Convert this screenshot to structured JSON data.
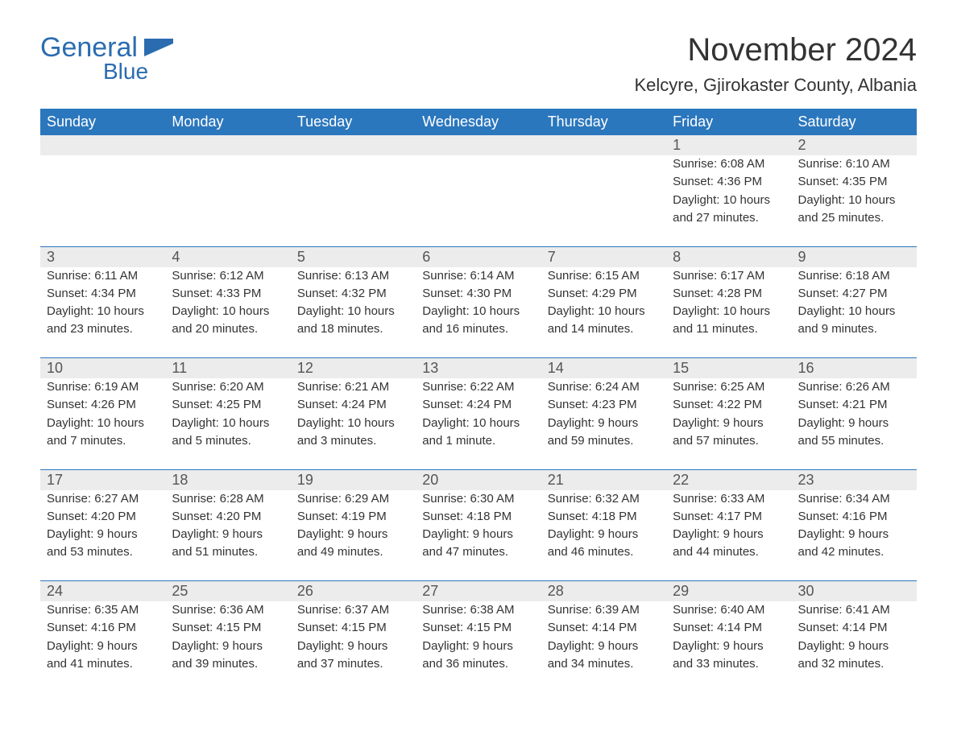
{
  "brand": {
    "text1": "General",
    "text2": "Blue",
    "color": "#2b6cb0"
  },
  "month_title": "November 2024",
  "location": "Kelcyre, Gjirokaster County, Albania",
  "header_bg": "#2b77bd",
  "header_fg": "#ffffff",
  "daynum_bg": "#ececec",
  "rule_color": "#2b77bd",
  "text_color": "#333333",
  "dow": [
    "Sunday",
    "Monday",
    "Tuesday",
    "Wednesday",
    "Thursday",
    "Friday",
    "Saturday"
  ],
  "weeks": [
    [
      null,
      null,
      null,
      null,
      null,
      {
        "n": "1",
        "sr": "6:08 AM",
        "ss": "4:36 PM",
        "d1": "10 hours",
        "d2": "and 27 minutes."
      },
      {
        "n": "2",
        "sr": "6:10 AM",
        "ss": "4:35 PM",
        "d1": "10 hours",
        "d2": "and 25 minutes."
      }
    ],
    [
      {
        "n": "3",
        "sr": "6:11 AM",
        "ss": "4:34 PM",
        "d1": "10 hours",
        "d2": "and 23 minutes."
      },
      {
        "n": "4",
        "sr": "6:12 AM",
        "ss": "4:33 PM",
        "d1": "10 hours",
        "d2": "and 20 minutes."
      },
      {
        "n": "5",
        "sr": "6:13 AM",
        "ss": "4:32 PM",
        "d1": "10 hours",
        "d2": "and 18 minutes."
      },
      {
        "n": "6",
        "sr": "6:14 AM",
        "ss": "4:30 PM",
        "d1": "10 hours",
        "d2": "and 16 minutes."
      },
      {
        "n": "7",
        "sr": "6:15 AM",
        "ss": "4:29 PM",
        "d1": "10 hours",
        "d2": "and 14 minutes."
      },
      {
        "n": "8",
        "sr": "6:17 AM",
        "ss": "4:28 PM",
        "d1": "10 hours",
        "d2": "and 11 minutes."
      },
      {
        "n": "9",
        "sr": "6:18 AM",
        "ss": "4:27 PM",
        "d1": "10 hours",
        "d2": "and 9 minutes."
      }
    ],
    [
      {
        "n": "10",
        "sr": "6:19 AM",
        "ss": "4:26 PM",
        "d1": "10 hours",
        "d2": "and 7 minutes."
      },
      {
        "n": "11",
        "sr": "6:20 AM",
        "ss": "4:25 PM",
        "d1": "10 hours",
        "d2": "and 5 minutes."
      },
      {
        "n": "12",
        "sr": "6:21 AM",
        "ss": "4:24 PM",
        "d1": "10 hours",
        "d2": "and 3 minutes."
      },
      {
        "n": "13",
        "sr": "6:22 AM",
        "ss": "4:24 PM",
        "d1": "10 hours",
        "d2": "and 1 minute."
      },
      {
        "n": "14",
        "sr": "6:24 AM",
        "ss": "4:23 PM",
        "d1": "9 hours",
        "d2": "and 59 minutes."
      },
      {
        "n": "15",
        "sr": "6:25 AM",
        "ss": "4:22 PM",
        "d1": "9 hours",
        "d2": "and 57 minutes."
      },
      {
        "n": "16",
        "sr": "6:26 AM",
        "ss": "4:21 PM",
        "d1": "9 hours",
        "d2": "and 55 minutes."
      }
    ],
    [
      {
        "n": "17",
        "sr": "6:27 AM",
        "ss": "4:20 PM",
        "d1": "9 hours",
        "d2": "and 53 minutes."
      },
      {
        "n": "18",
        "sr": "6:28 AM",
        "ss": "4:20 PM",
        "d1": "9 hours",
        "d2": "and 51 minutes."
      },
      {
        "n": "19",
        "sr": "6:29 AM",
        "ss": "4:19 PM",
        "d1": "9 hours",
        "d2": "and 49 minutes."
      },
      {
        "n": "20",
        "sr": "6:30 AM",
        "ss": "4:18 PM",
        "d1": "9 hours",
        "d2": "and 47 minutes."
      },
      {
        "n": "21",
        "sr": "6:32 AM",
        "ss": "4:18 PM",
        "d1": "9 hours",
        "d2": "and 46 minutes."
      },
      {
        "n": "22",
        "sr": "6:33 AM",
        "ss": "4:17 PM",
        "d1": "9 hours",
        "d2": "and 44 minutes."
      },
      {
        "n": "23",
        "sr": "6:34 AM",
        "ss": "4:16 PM",
        "d1": "9 hours",
        "d2": "and 42 minutes."
      }
    ],
    [
      {
        "n": "24",
        "sr": "6:35 AM",
        "ss": "4:16 PM",
        "d1": "9 hours",
        "d2": "and 41 minutes."
      },
      {
        "n": "25",
        "sr": "6:36 AM",
        "ss": "4:15 PM",
        "d1": "9 hours",
        "d2": "and 39 minutes."
      },
      {
        "n": "26",
        "sr": "6:37 AM",
        "ss": "4:15 PM",
        "d1": "9 hours",
        "d2": "and 37 minutes."
      },
      {
        "n": "27",
        "sr": "6:38 AM",
        "ss": "4:15 PM",
        "d1": "9 hours",
        "d2": "and 36 minutes."
      },
      {
        "n": "28",
        "sr": "6:39 AM",
        "ss": "4:14 PM",
        "d1": "9 hours",
        "d2": "and 34 minutes."
      },
      {
        "n": "29",
        "sr": "6:40 AM",
        "ss": "4:14 PM",
        "d1": "9 hours",
        "d2": "and 33 minutes."
      },
      {
        "n": "30",
        "sr": "6:41 AM",
        "ss": "4:14 PM",
        "d1": "9 hours",
        "d2": "and 32 minutes."
      }
    ]
  ],
  "labels": {
    "sunrise": "Sunrise: ",
    "sunset": "Sunset: ",
    "daylight": "Daylight: "
  }
}
